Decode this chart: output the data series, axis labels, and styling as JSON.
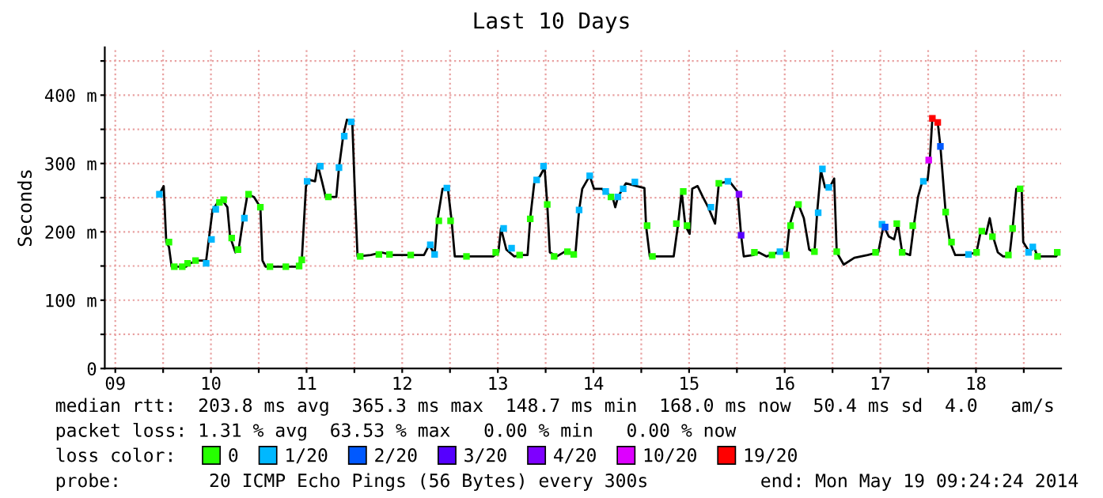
{
  "chart_data": {
    "type": "line",
    "title": "Last 10 Days",
    "ylabel": "Seconds",
    "xlim": [
      9.39,
      19.39
    ],
    "ylim": [
      0,
      470
    ],
    "xticks": [
      {
        "value": 9.5,
        "label": "09"
      },
      {
        "value": 10,
        "label": null
      },
      {
        "value": 10.5,
        "label": "10"
      },
      {
        "value": 11,
        "label": null
      },
      {
        "value": 11.5,
        "label": "11"
      },
      {
        "value": 12,
        "label": null
      },
      {
        "value": 12.5,
        "label": "12"
      },
      {
        "value": 13,
        "label": null
      },
      {
        "value": 13.5,
        "label": "13"
      },
      {
        "value": 14,
        "label": null
      },
      {
        "value": 14.5,
        "label": "14"
      },
      {
        "value": 15,
        "label": null
      },
      {
        "value": 15.5,
        "label": "15"
      },
      {
        "value": 16,
        "label": null
      },
      {
        "value": 16.5,
        "label": "16"
      },
      {
        "value": 17,
        "label": null
      },
      {
        "value": 17.5,
        "label": "17"
      },
      {
        "value": 18,
        "label": null
      },
      {
        "value": 18.5,
        "label": "18"
      },
      {
        "value": 19,
        "label": null
      }
    ],
    "yticks": [
      0,
      {
        "value": 50,
        "label": null
      },
      {
        "value": 100,
        "label": "100 m"
      },
      {
        "value": 150,
        "label": null
      },
      {
        "value": 200,
        "label": "200 m"
      },
      {
        "value": 250,
        "label": null
      },
      {
        "value": 300,
        "label": "300 m"
      },
      {
        "value": 350,
        "label": null
      },
      {
        "value": 400,
        "label": "400 m"
      },
      {
        "value": 450,
        "label": null
      }
    ],
    "grid": true,
    "legend": "bottom",
    "legend_title": "loss color:",
    "annotations": [
      "median rtt:  203.8 ms avg  365.3 ms max  148.7 ms min  168.0 ms now  50.4 ms sd  4.0   am/s",
      "packet loss: 1.31 % avg  63.53 % max   0.00 % min   0.00 % now",
      "probe:        20 ICMP Echo Pings (56 Bytes) every 300s",
      "end: Mon May 19 09:24:24 2014"
    ],
    "series": [
      {
        "color": "#000000",
        "x": [
          9.961,
          10.006,
          10.033,
          10.061,
          10.089,
          10.239,
          10.283,
          10.367,
          10.45,
          10.478,
          10.517,
          10.572,
          10.617,
          10.672,
          10.7,
          10.756,
          10.794,
          10.839,
          10.883,
          10.95,
          11.017,
          11.039,
          11.072,
          11.394,
          11.45,
          11.494,
          11.533,
          11.589,
          11.617,
          11.661,
          11.7,
          11.811,
          11.839,
          11.883,
          11.922,
          11.978,
          12.006,
          12.033,
          12.172,
          12.283,
          12.394,
          12.617,
          12.728,
          12.783,
          12.839,
          12.867,
          12.922,
          12.978,
          13.017,
          13.05,
          13.45,
          13.506,
          13.533,
          13.589,
          13.672,
          13.756,
          13.811,
          13.839,
          13.883,
          13.939,
          13.989,
          14.017,
          14.044,
          14.117,
          14.2,
          14.311,
          14.35,
          14.383,
          14.461,
          14.506,
          14.589,
          14.617,
          14.7,
          14.728,
          14.756,
          14.839,
          14.95,
          15.033,
          15.05,
          15.089,
          15.339,
          15.383,
          15.422,
          15.461,
          15.506,
          15.533,
          15.589,
          15.644,
          15.7,
          15.772,
          15.811,
          15.922,
          16.006,
          16.044,
          16.072,
          16.172,
          16.228,
          16.311,
          16.367,
          16.45,
          16.517,
          16.55,
          16.606,
          16.644,
          16.7,
          16.756,
          16.811,
          16.839,
          16.878,
          16.922,
          16.978,
          17.017,
          17.044,
          17.117,
          17.228,
          17.367,
          17.478,
          17.533,
          17.589,
          17.644,
          17.683,
          17.728,
          17.811,
          17.85,
          17.894,
          17.939,
          17.994,
          18.017,
          18.044,
          18.1,
          18.128,
          18.183,
          18.228,
          18.283,
          18.367,
          18.422,
          18.506,
          18.55,
          18.606,
          18.644,
          18.683,
          18.728,
          18.783,
          18.85,
          18.883,
          18.922,
          18.978,
          18.994,
          19.061,
          19.106,
          19.144,
          19.339,
          19.361
        ],
        "values": [
          255,
          267,
          185,
          178,
          149,
          149,
          154,
          158,
          158,
          189,
          232,
          243,
          247,
          236,
          193,
          170,
          178,
          220,
          255,
          251,
          236,
          158,
          149,
          149,
          158,
          267,
          276,
          274,
          298,
          274,
          251,
          251,
          294,
          340,
          364,
          361,
          255,
          164,
          166,
          170,
          166,
          166,
          166,
          181,
          167,
          216,
          263,
          263,
          216,
          164,
          164,
          170,
          205,
          174,
          164,
          166,
          166,
          220,
          274,
          281,
          294,
          240,
          170,
          164,
          171,
          167,
          232,
          263,
          282,
          263,
          263,
          259,
          251,
          236,
          251,
          271,
          267,
          264,
          209,
          164,
          164,
          209,
          259,
          209,
          197,
          263,
          267,
          251,
          236,
          212,
          271,
          274,
          259,
          195,
          164,
          166,
          170,
          164,
          167,
          171,
          166,
          209,
          236,
          240,
          220,
          174,
          170,
          228,
          290,
          265,
          267,
          278,
          170,
          152,
          162,
          166,
          170,
          209,
          193,
          189,
          212,
          170,
          166,
          209,
          251,
          274,
          276,
          305,
          366,
          360,
          325,
          228,
          185,
          166,
          166,
          167,
          170,
          201,
          197,
          220,
          191,
          170,
          164,
          164,
          205,
          263,
          263,
          185,
          170,
          178,
          164,
          164,
          170
        ]
      },
      {
        "type": "scatter",
        "name": "0",
        "color": "#26ff00",
        "marker": "square",
        "x": [
          10.061,
          10.117,
          10.2,
          10.256,
          10.339,
          10.589,
          10.633,
          10.717,
          10.783,
          10.894,
          11.017,
          11.117,
          11.283,
          11.422,
          11.45,
          11.728,
          12.061,
          12.256,
          12.367,
          12.589,
          12.883,
          13.006,
          13.172,
          13.478,
          13.728,
          13.839,
          14.017,
          14.089,
          14.228,
          14.294,
          14.683,
          15.061,
          15.117,
          15.367,
          15.439,
          15.478,
          15.811,
          16.183,
          16.367,
          16.517,
          16.561,
          16.644,
          16.811,
          17.044,
          17.45,
          17.672,
          17.728,
          17.839,
          18.183,
          18.244,
          18.506,
          18.561,
          18.672,
          18.839,
          18.883,
          18.961,
          19.144,
          19.35
        ],
        "values": [
          185,
          149,
          149,
          154,
          158,
          243,
          247,
          191,
          174,
          255,
          236,
          149,
          149,
          150,
          159,
          251,
          164,
          167,
          167,
          166,
          216,
          216,
          164,
          170,
          166,
          219,
          240,
          164,
          171,
          167,
          251,
          209,
          164,
          212,
          259,
          209,
          271,
          170,
          166,
          166,
          209,
          240,
          171,
          171,
          170,
          212,
          170,
          209,
          229,
          185,
          170,
          201,
          193,
          166,
          205,
          263,
          164,
          170
        ]
      },
      {
        "type": "scatter",
        "name": "1/20",
        "color": "#00b8ff",
        "marker": "square",
        "x": [
          9.961,
          10.45,
          10.506,
          10.55,
          10.85,
          11.506,
          11.644,
          11.839,
          11.894,
          11.967,
          12.794,
          12.839,
          12.967,
          13.561,
          13.644,
          13.906,
          13.978,
          14.35,
          14.461,
          14.628,
          14.756,
          14.811,
          14.933,
          15.728,
          15.906,
          16.45,
          16.85,
          16.894,
          16.961,
          17.517,
          17.95,
          18.422,
          19.05,
          19.094
        ],
        "values": [
          255,
          154,
          189,
          233,
          220,
          274,
          296,
          294,
          340,
          361,
          181,
          167,
          264,
          205,
          176,
          276,
          296,
          232,
          282,
          259,
          251,
          263,
          273,
          236,
          274,
          171,
          228,
          292,
          265,
          211,
          274,
          167,
          170,
          178
        ]
      },
      {
        "type": "scatter",
        "name": "2/20",
        "color": "#0059ff",
        "marker": "square",
        "x": [
          17.55,
          18.128
        ],
        "values": [
          207,
          325
        ]
      },
      {
        "type": "scatter",
        "name": "3/20",
        "color": "#5500ff",
        "marker": "square",
        "x": [
          16.044
        ],
        "values": [
          195
        ]
      },
      {
        "type": "scatter",
        "name": "4/20",
        "color": "#7e00ff",
        "marker": "square",
        "x": [
          16.022
        ],
        "values": [
          255
        ]
      },
      {
        "type": "scatter",
        "name": "10/20",
        "color": "#dd00ff",
        "marker": "square",
        "x": [
          18.006
        ],
        "values": [
          305
        ]
      },
      {
        "type": "scatter",
        "name": "19/20",
        "color": "#ff0000",
        "marker": "square",
        "x": [
          18.044,
          18.1
        ],
        "values": [
          366,
          360
        ]
      }
    ]
  }
}
